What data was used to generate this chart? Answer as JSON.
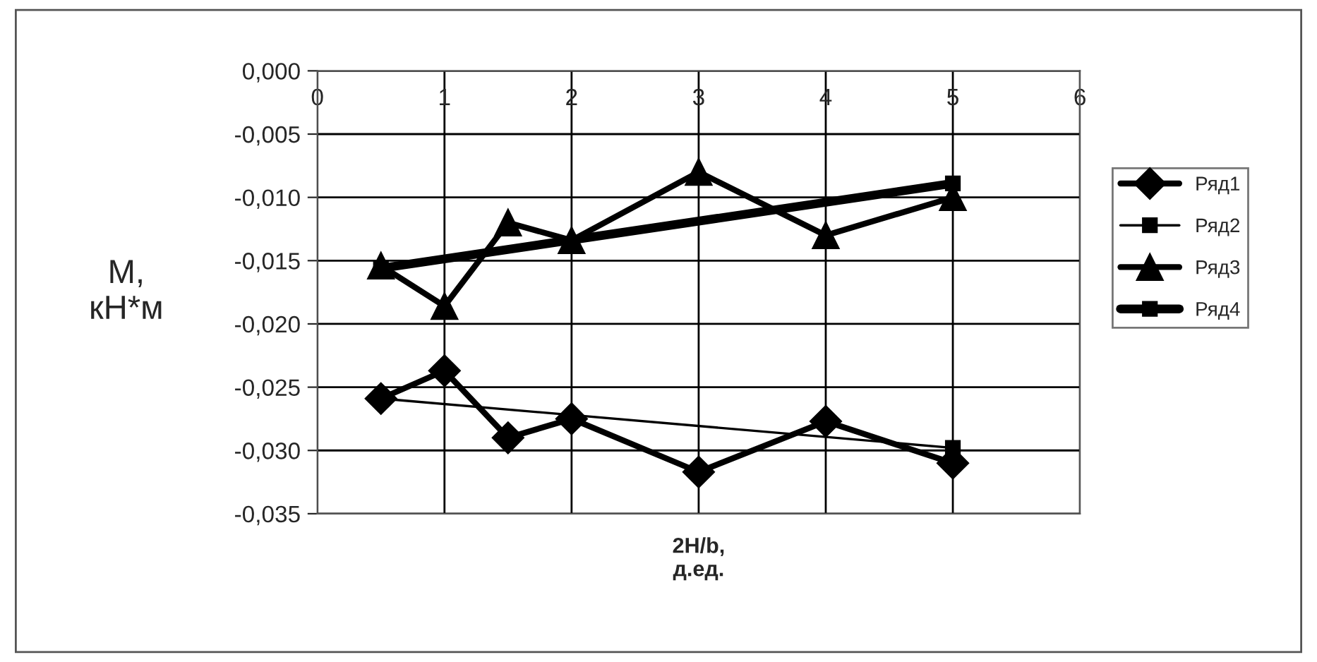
{
  "chart_data": {
    "type": "line",
    "xlabel": "2H/b,\nд.ед.",
    "ylabel": "M,\nкН*м",
    "xlim": [
      0,
      6
    ],
    "xticks": [
      0,
      1,
      2,
      3,
      4,
      5,
      6
    ],
    "ylim": [
      -0.035,
      0
    ],
    "yticks": [
      {
        "value": 0,
        "label": "0,000"
      },
      {
        "value": -0.005,
        "label": "-0,005"
      },
      {
        "value": -0.01,
        "label": "-0,010"
      },
      {
        "value": -0.015,
        "label": "-0,015"
      },
      {
        "value": -0.02,
        "label": "-0,020"
      },
      {
        "value": -0.025,
        "label": "-0,025"
      },
      {
        "value": -0.03,
        "label": "-0,030"
      },
      {
        "value": -0.035,
        "label": "-0,035"
      }
    ],
    "grid": true,
    "legend": "right",
    "series": [
      {
        "name": "Ряд1",
        "color": "#000000",
        "marker": "diamond",
        "x": [
          0.5,
          1,
          1.5,
          2,
          3,
          4,
          5
        ],
        "values": [
          -0.0259,
          -0.0237,
          -0.029,
          -0.0275,
          -0.0317,
          -0.0277,
          -0.031
        ]
      },
      {
        "name": "Ряд2",
        "color": "#000000",
        "marker": "square",
        "x": [
          0.5,
          5
        ],
        "values": [
          -0.0259,
          -0.0298
        ]
      },
      {
        "name": "Ряд3",
        "color": "#000000",
        "marker": "triangle",
        "x": [
          0.5,
          1,
          1.5,
          2,
          3,
          4,
          5
        ],
        "values": [
          -0.0154,
          -0.0186,
          -0.012,
          -0.0134,
          -0.008,
          -0.013,
          -0.01
        ]
      },
      {
        "name": "Ряд4",
        "color": "#000000",
        "marker": "square",
        "x": [
          0.5,
          5
        ],
        "values": [
          -0.0156,
          -0.0089
        ]
      }
    ]
  }
}
